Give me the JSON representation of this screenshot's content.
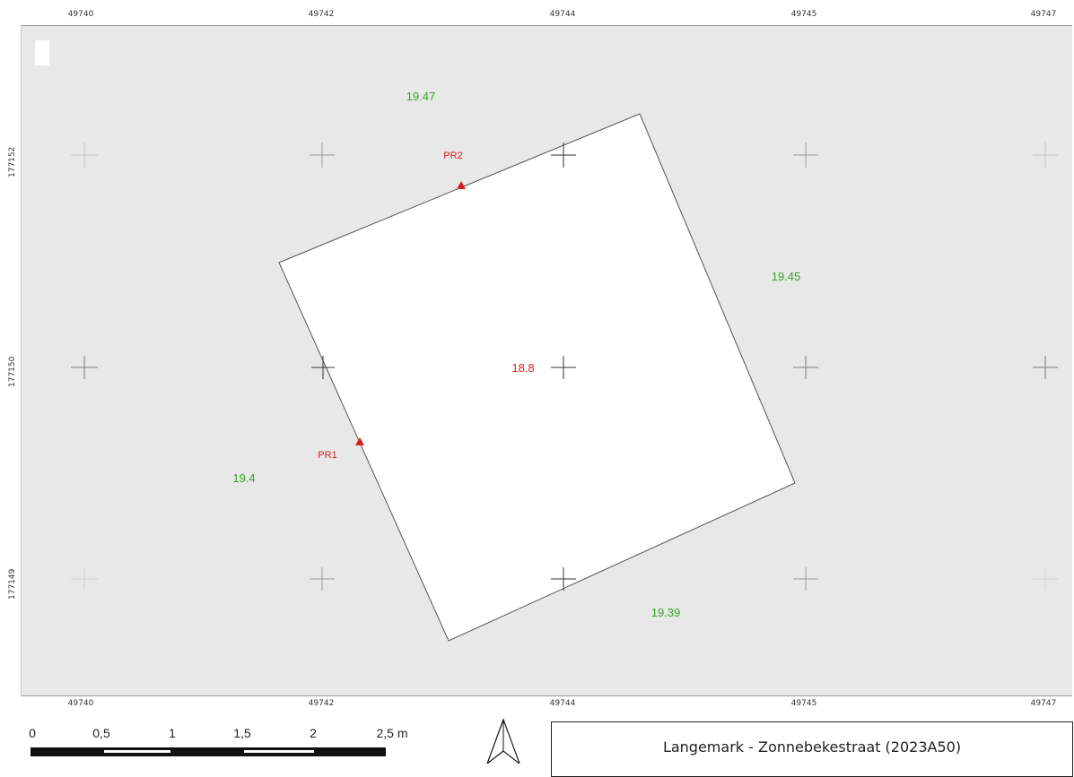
{
  "grid": {
    "x_labels": [
      "49740",
      "49742",
      "49744",
      "49745",
      "49747"
    ],
    "y_labels": [
      "177152",
      "177150",
      "177149"
    ]
  },
  "elevations": {
    "interior": "18.8",
    "surroundings": [
      "19.47",
      "19.45",
      "19.4",
      "19.39"
    ],
    "interior_color": "#e02020",
    "surroundings_color": "#3aa02a"
  },
  "profiles": [
    {
      "label": "PR1",
      "color": "#d42020"
    },
    {
      "label": "PR2",
      "color": "#d42020"
    }
  ],
  "scalebar": {
    "ticks": [
      "0",
      "0,5",
      "1",
      "1,5",
      "2",
      "2,5 m"
    ]
  },
  "north_arrow": {
    "icon": "north-arrow-icon"
  },
  "title": "Langemark - Zonnebekestraat (2023A50)",
  "colors": {
    "map_background": "#e8e8e8",
    "trench_fill": "#ffffff"
  }
}
